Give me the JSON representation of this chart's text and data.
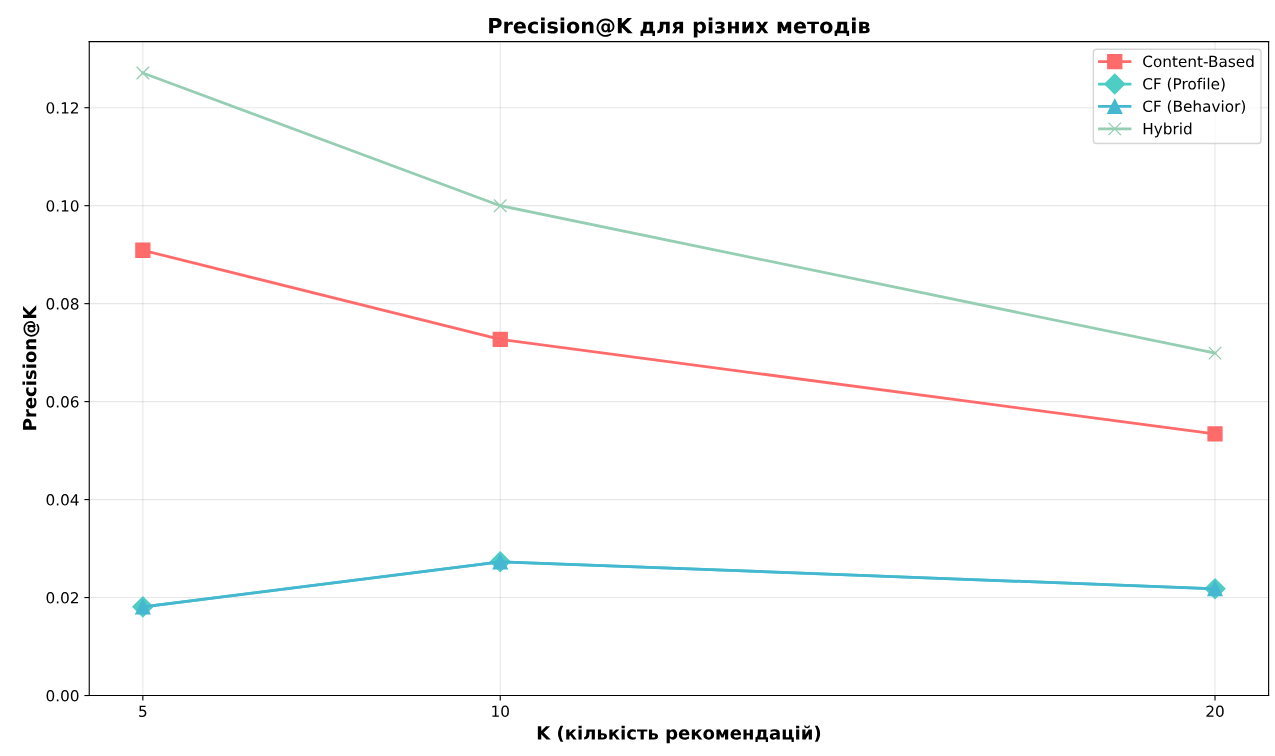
{
  "chart_data": {
    "type": "line",
    "title": "Precision@K для різних методів",
    "xlabel": "K (кількість рекомендацій)",
    "ylabel": "Precision@K",
    "x": [
      5,
      10,
      20
    ],
    "series": [
      {
        "name": "Content-Based",
        "color": "#ff6b6b",
        "marker": "square",
        "values": [
          0.0909,
          0.0727,
          0.0534
        ]
      },
      {
        "name": "CF (Profile)",
        "color": "#4ecdc4",
        "marker": "diamond",
        "values": [
          0.0181,
          0.0273,
          0.0218
        ]
      },
      {
        "name": "CF (Behavior)",
        "color": "#45b7d1",
        "marker": "triangle",
        "values": [
          0.0181,
          0.0273,
          0.0218
        ]
      },
      {
        "name": "Hybrid",
        "color": "#96ceb4",
        "marker": "cross",
        "values": [
          0.1271,
          0.1,
          0.0699
        ]
      }
    ],
    "xlim": [
      4.25,
      20.75
    ],
    "ylim": [
      0,
      0.1335
    ],
    "xticks": [
      5,
      10,
      20
    ],
    "yticks": [
      {
        "value": 0,
        "label": "0.00"
      },
      {
        "value": 0.02,
        "label": "0.02"
      },
      {
        "value": 0.04,
        "label": "0.04"
      },
      {
        "value": 0.06,
        "label": "0.06"
      },
      {
        "value": 0.08,
        "label": "0.08"
      },
      {
        "value": 0.1,
        "label": "0.10"
      },
      {
        "value": 0.12,
        "label": "0.12"
      }
    ],
    "grid": true,
    "legend": "top right",
    "line_style": "solid"
  }
}
